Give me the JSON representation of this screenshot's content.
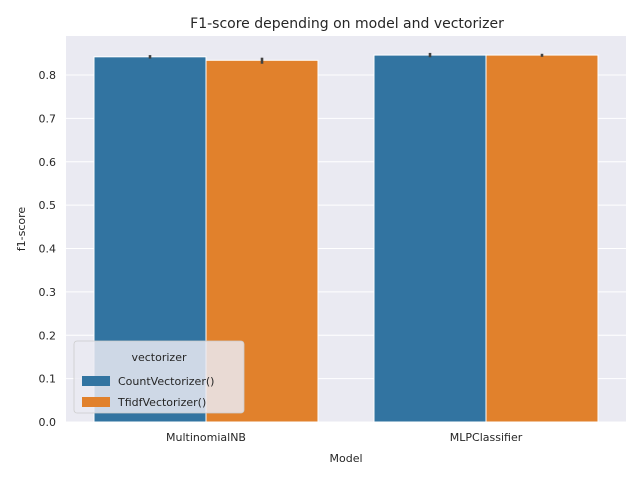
{
  "chart_data": {
    "type": "bar",
    "title": "F1-score depending on model and vectorizer",
    "xlabel": "Model",
    "ylabel": "f1-score",
    "categories": [
      "MultinomialNB",
      "MLPClassifier"
    ],
    "series": [
      {
        "name": "CountVectorizer()",
        "values": [
          0.842,
          0.846
        ],
        "error": [
          [
            0.838,
            0.846
          ],
          [
            0.841,
            0.851
          ]
        ],
        "color": "#3274a1"
      },
      {
        "name": "TfidfVectorizer()",
        "values": [
          0.834,
          0.846
        ],
        "error": [
          [
            0.826,
            0.84
          ],
          [
            0.842,
            0.849
          ]
        ],
        "color": "#e1812c"
      }
    ],
    "yticks": [
      "0.0",
      "0.1",
      "0.2",
      "0.3",
      "0.4",
      "0.5",
      "0.6",
      "0.7",
      "0.8"
    ],
    "ylim": [
      0,
      0.89
    ],
    "grid": true,
    "legend": {
      "title": "vectorizer",
      "position": "lower-left"
    },
    "colors": {
      "background": "#eaeaf2",
      "grid": "#ffffff",
      "errorbar": "#424242"
    }
  }
}
